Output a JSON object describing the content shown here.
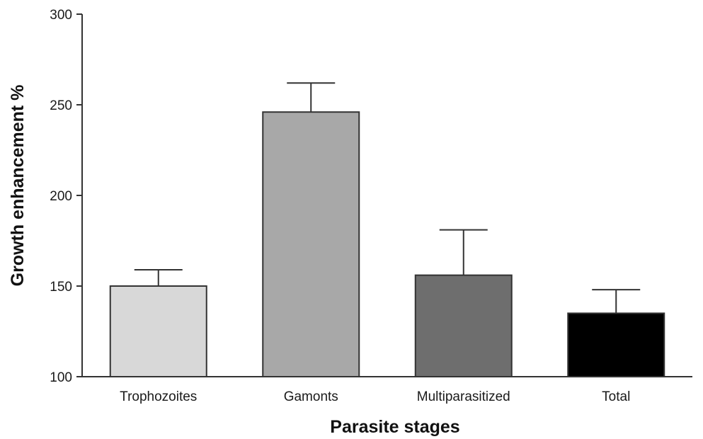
{
  "chart_data": {
    "type": "bar",
    "title": "",
    "xlabel": "Parasite stages",
    "ylabel": "Growth enhancement %",
    "categories": [
      "Trophozoites",
      "Gamonts",
      "Multiparasitized",
      "Total"
    ],
    "values": [
      150,
      246,
      156,
      135
    ],
    "error_upper": [
      159,
      262,
      181,
      148
    ],
    "colors": [
      "#d8d8d8",
      "#a8a8a8",
      "#6e6e6e",
      "#000000"
    ],
    "ylim": [
      100,
      300
    ],
    "yticks": [
      100,
      150,
      200,
      250,
      300
    ],
    "grid": false,
    "legend": "none"
  }
}
